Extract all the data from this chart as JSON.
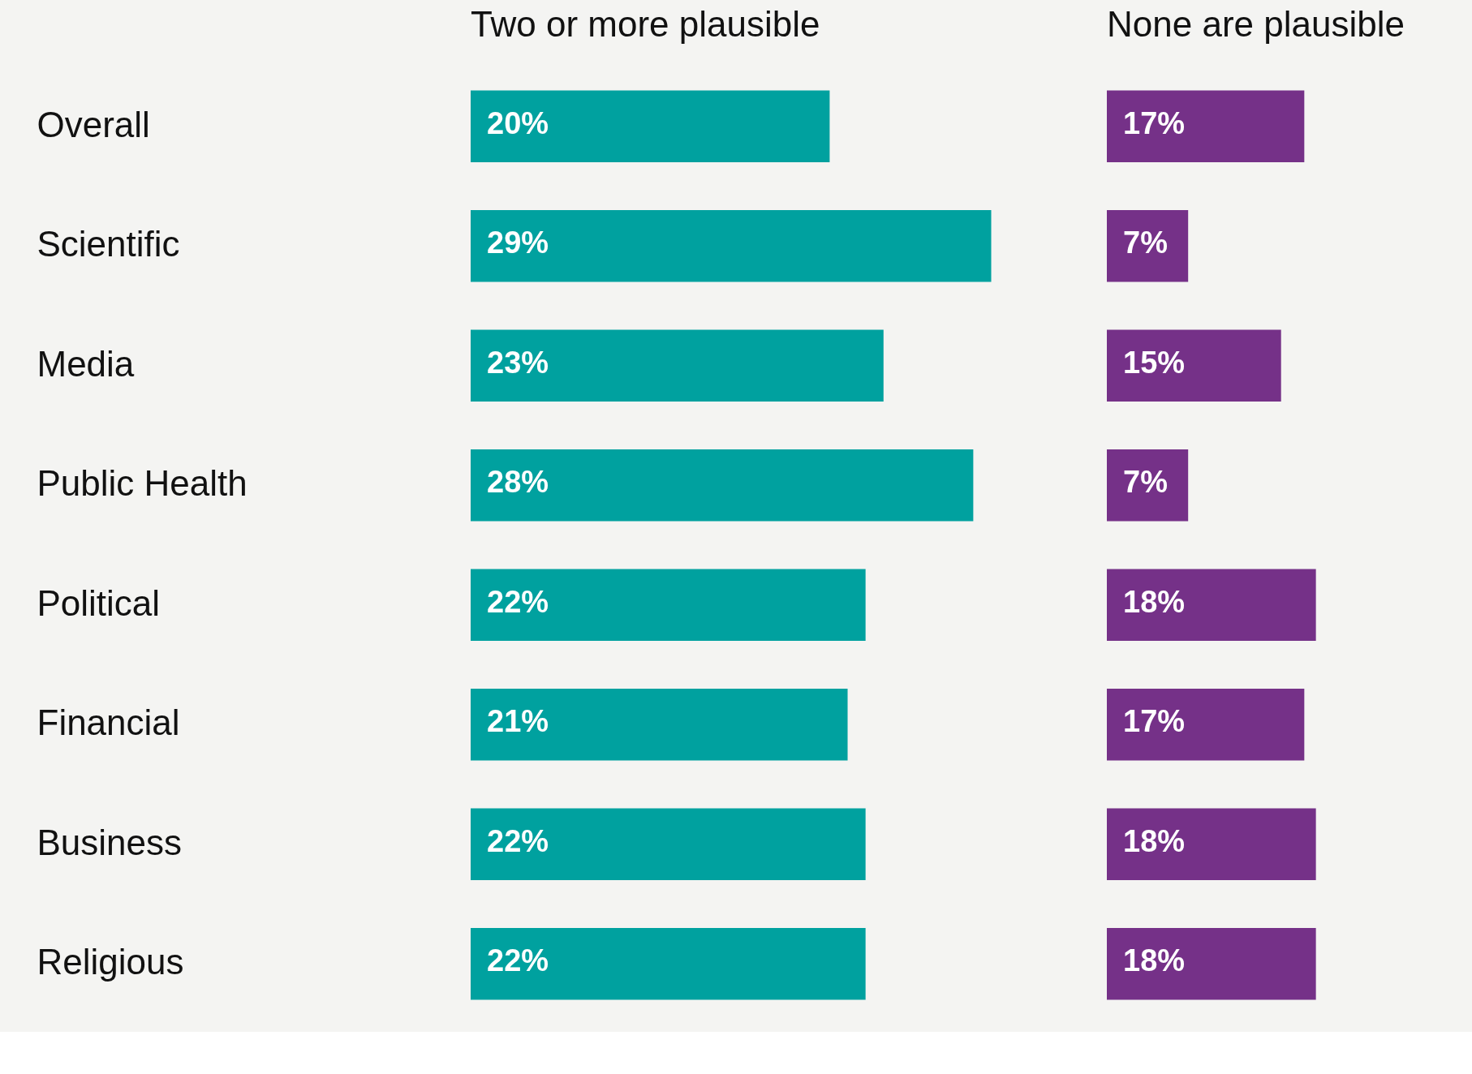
{
  "chart_data": [
    {
      "type": "bar",
      "orientation": "horizontal",
      "title": "Two or more plausible",
      "categories": [
        "Overall",
        "Scientific",
        "Media",
        "Public Health",
        "Political",
        "Financial",
        "Business",
        "Religious"
      ],
      "values": [
        20,
        29,
        23,
        28,
        22,
        21,
        22,
        22
      ],
      "value_labels": [
        "20%",
        "29%",
        "23%",
        "28%",
        "22%",
        "21%",
        "22%",
        "22%"
      ],
      "color": "#00a19f",
      "tick_labels": "y"
    },
    {
      "type": "bar",
      "orientation": "horizontal",
      "title": "None are plausible",
      "categories": [
        null,
        null,
        null,
        null,
        null,
        null,
        null,
        null
      ],
      "values": [
        17,
        7,
        15,
        7,
        18,
        17,
        18,
        18
      ],
      "value_labels": [
        "17%",
        "7%",
        "15%",
        "7%",
        "18%",
        "17%",
        "18%",
        "18%"
      ],
      "color": "#753188",
      "tick_labels": false
    }
  ]
}
